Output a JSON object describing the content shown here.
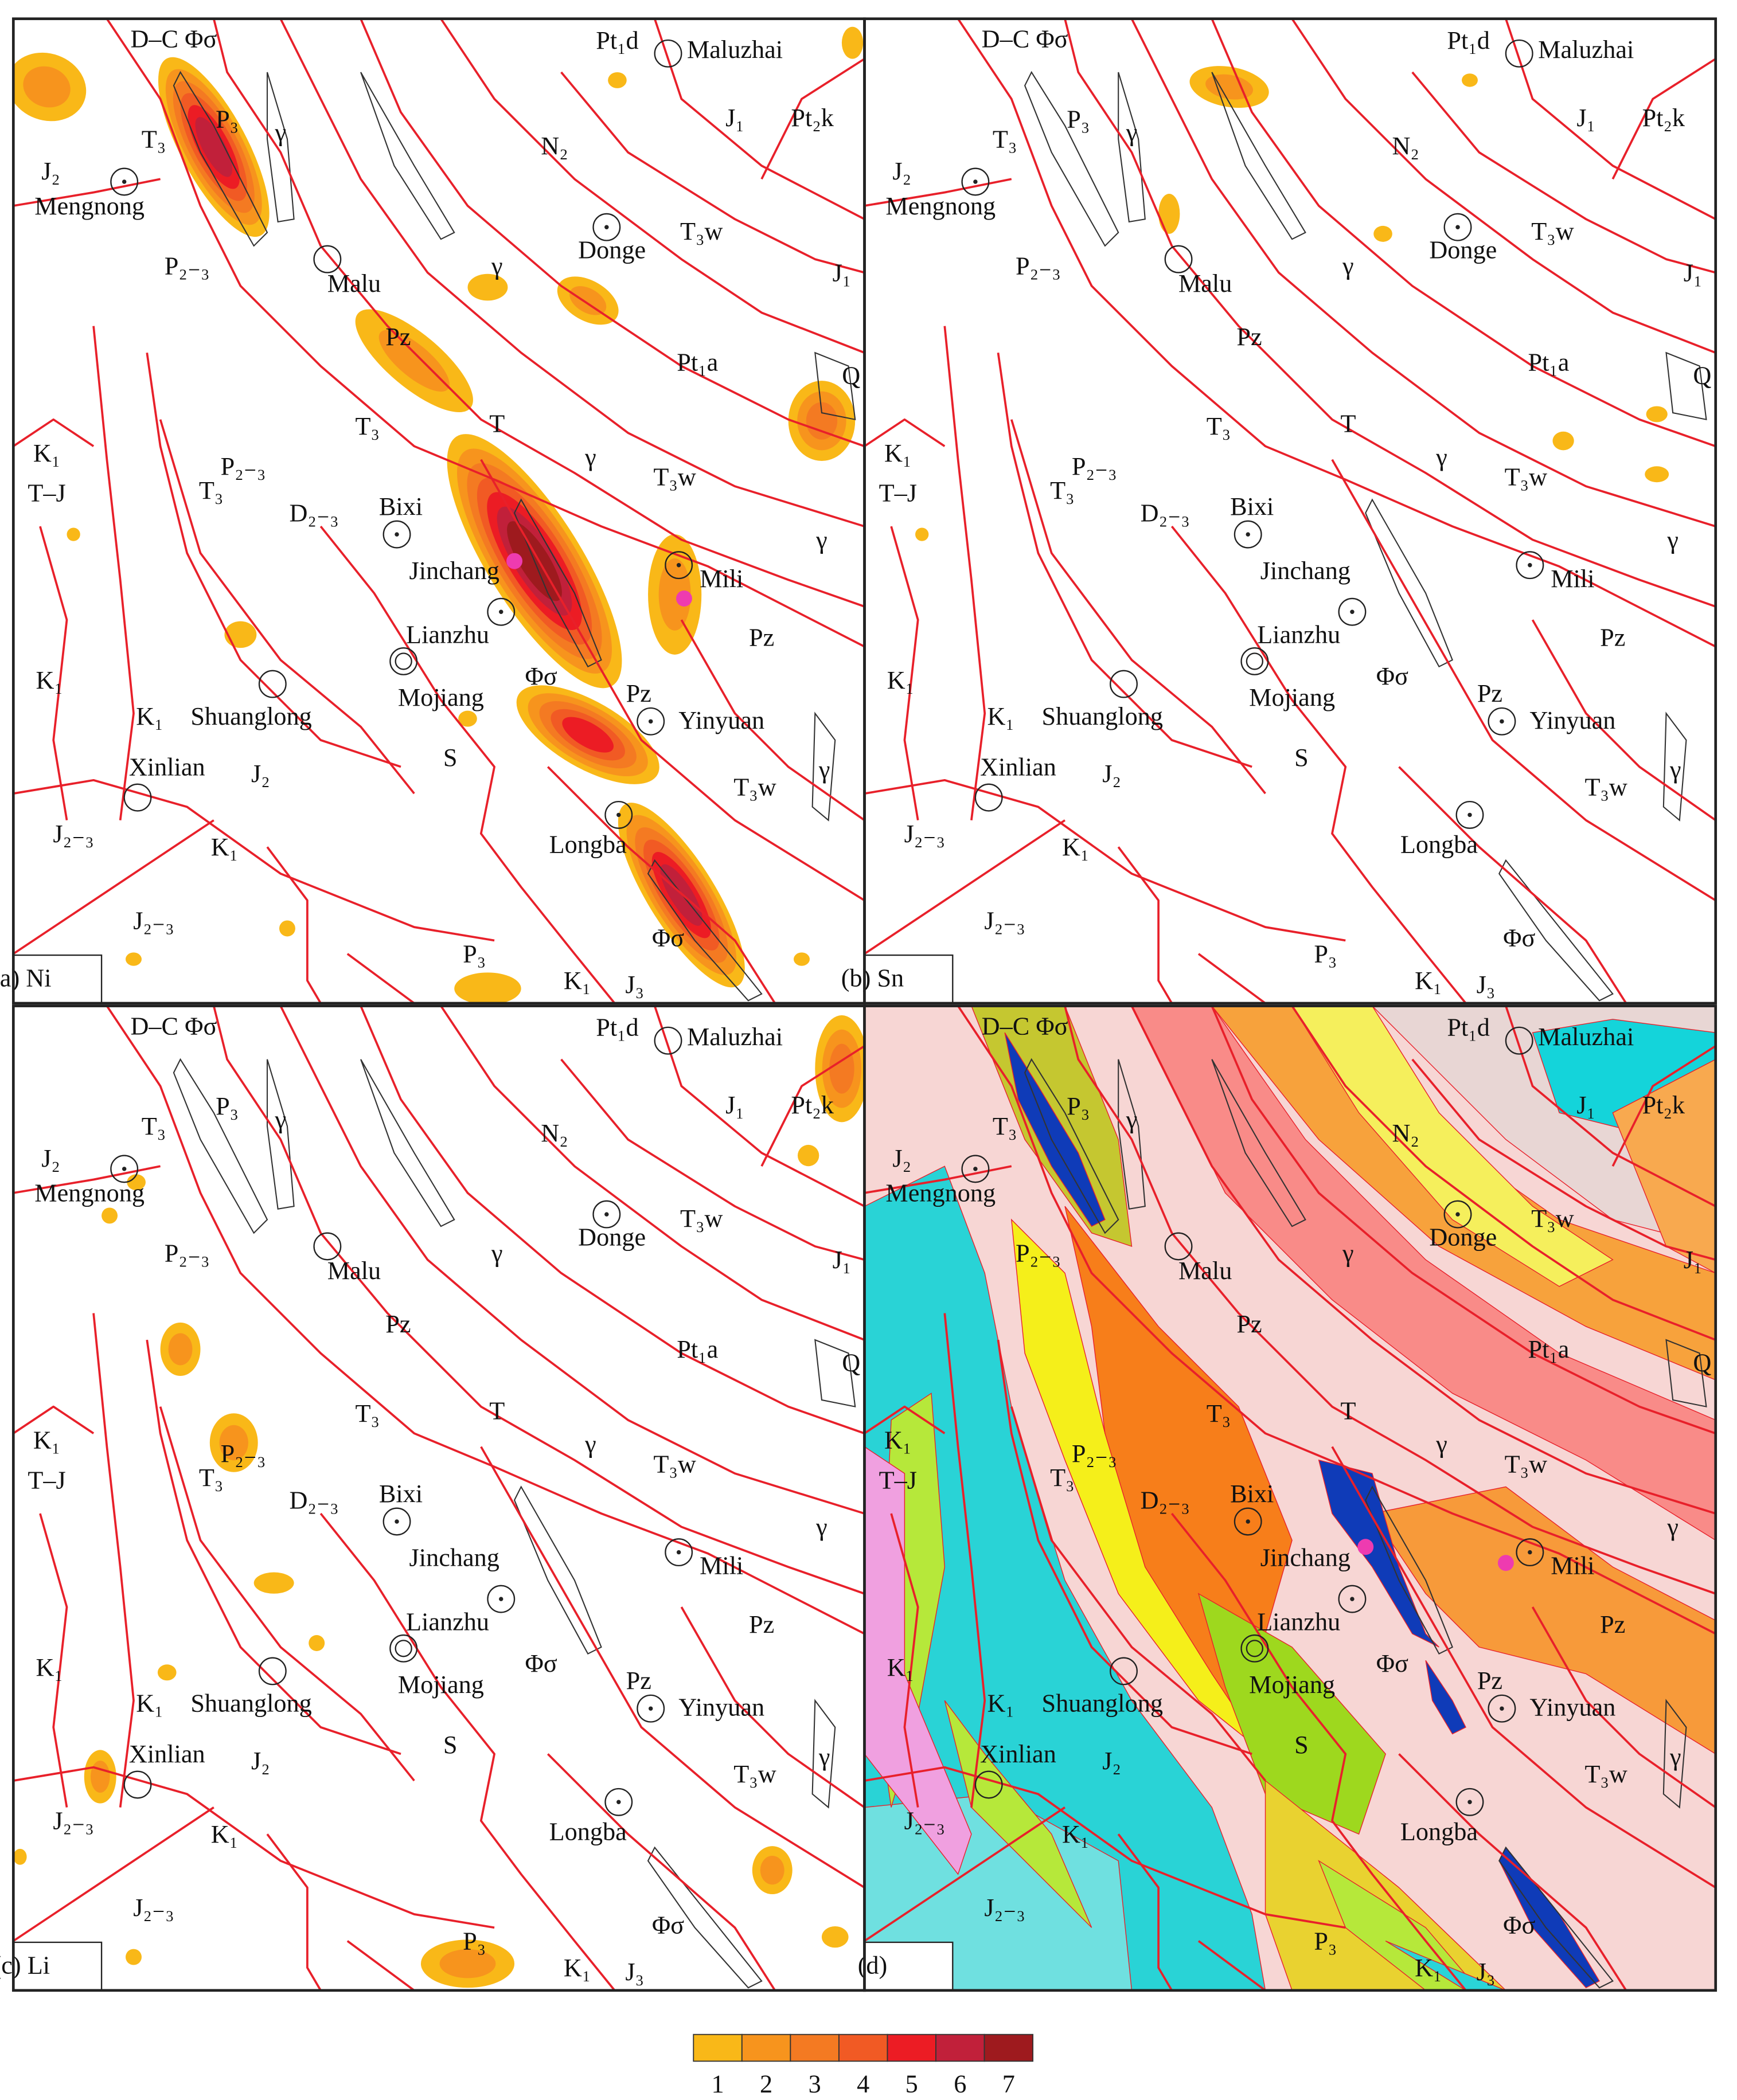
{
  "panels": [
    {
      "label": "(a) Ni"
    },
    {
      "label": "(b) Sn"
    },
    {
      "label": "(c) Li"
    },
    {
      "label": "(d)"
    }
  ],
  "map_labels": [
    "D–C Φσ",
    "Pt₁d",
    "Maluzhai",
    "J₁",
    "Pt₂k",
    "P₃",
    "γ",
    "N₂",
    "T₃",
    "J₂",
    "Mengnong",
    "T₃w",
    "Donge",
    "J₁",
    "P₂₋₃",
    "Malu",
    "γ",
    "Pz",
    "Pt₁a",
    "Q",
    "T₃",
    "T",
    "γ",
    "K₁",
    "P₂₋₃",
    "T₃w",
    "T–J",
    "T₃",
    "D₂₋₃",
    "Bixi",
    "γ",
    "Jinchang",
    "Mili",
    "Lianzhu",
    "Pz",
    "K₁",
    "Mojiang",
    "Φσ",
    "Pz",
    "K₁",
    "Shuanglong",
    "Yinyuan",
    "Xinlian",
    "J₂",
    "S",
    "T₃w",
    "γ",
    "J₂₋₃",
    "K₁",
    "Longba",
    "J₂₋₃",
    "Φσ",
    "P₃",
    "K₁",
    "J₃"
  ],
  "legend": {
    "items": [
      {
        "label": "1",
        "color": "#f9b818"
      },
      {
        "label": "2",
        "color": "#f7941d"
      },
      {
        "label": "3",
        "color": "#f47a22"
      },
      {
        "label": "4",
        "color": "#f15a24"
      },
      {
        "label": "5",
        "color": "#ec1c24"
      },
      {
        "label": "6",
        "color": "#c1203a"
      },
      {
        "label": "7",
        "color": "#9e1a1e"
      }
    ]
  }
}
